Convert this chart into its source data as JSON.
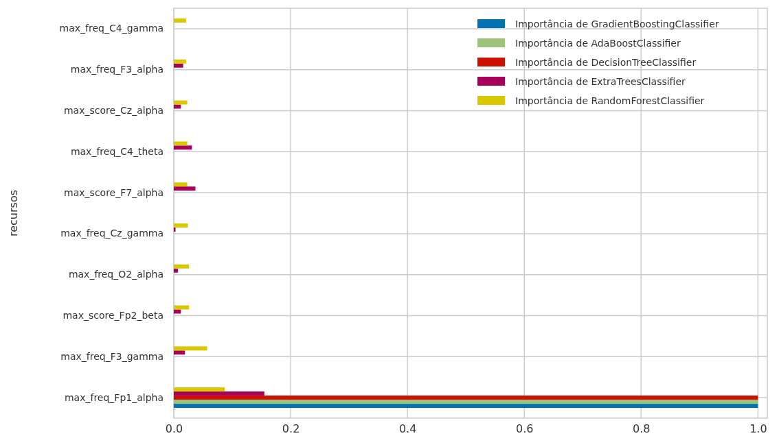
{
  "chart_data": {
    "type": "bar",
    "orientation": "horizontal",
    "ylabel": "recursos",
    "categories": [
      "max_freq_C4_gamma",
      "max_freq_F3_alpha",
      "max_score_Cz_alpha",
      "max_freq_C4_theta",
      "max_score_F7_alpha",
      "max_freq_Cz_gamma",
      "max_freq_O2_alpha",
      "max_score_Fp2_beta",
      "max_freq_F3_gamma",
      "max_freq_Fp1_alpha"
    ],
    "series": [
      {
        "name": "Importância de GradientBoostingClassifier",
        "color": "#0072b2",
        "values": [
          0,
          0,
          0,
          0,
          0,
          0,
          0,
          0,
          0,
          1
        ]
      },
      {
        "name": "Importância de AdaBoostClassifier",
        "color": "#9dc47a",
        "values": [
          0,
          0,
          0,
          0,
          0,
          0,
          0,
          0,
          0,
          1
        ]
      },
      {
        "name": "Importância de DecisionTreeClassifier",
        "color": "#cc1100",
        "values": [
          0,
          0,
          0,
          0,
          0,
          0,
          0,
          0,
          0,
          1
        ]
      },
      {
        "name": "Importância de ExtraTreesClassifier",
        "color": "#a8005a",
        "values": [
          0,
          0.016,
          0.012,
          0.031,
          0.037,
          0.003,
          0.007,
          0.012,
          0.019,
          0.155
        ]
      },
      {
        "name": "Importância de RandomForestClassifier",
        "color": "#d8c800",
        "values": [
          0.021,
          0.021,
          0.023,
          0.023,
          0.023,
          0.024,
          0.026,
          0.026,
          0.057,
          0.087
        ]
      }
    ],
    "xlim": [
      0,
      1.016
    ],
    "xticks": [
      {
        "value": 0,
        "label": "0.0"
      },
      {
        "value": 0.2,
        "label": "0.2"
      },
      {
        "value": 0.4,
        "label": "0.4"
      },
      {
        "value": 0.6,
        "label": "0.6"
      },
      {
        "value": 0.8,
        "label": "0.8"
      },
      {
        "value": 1,
        "label": "1.0"
      }
    ],
    "grid": true,
    "legend": "top right"
  }
}
